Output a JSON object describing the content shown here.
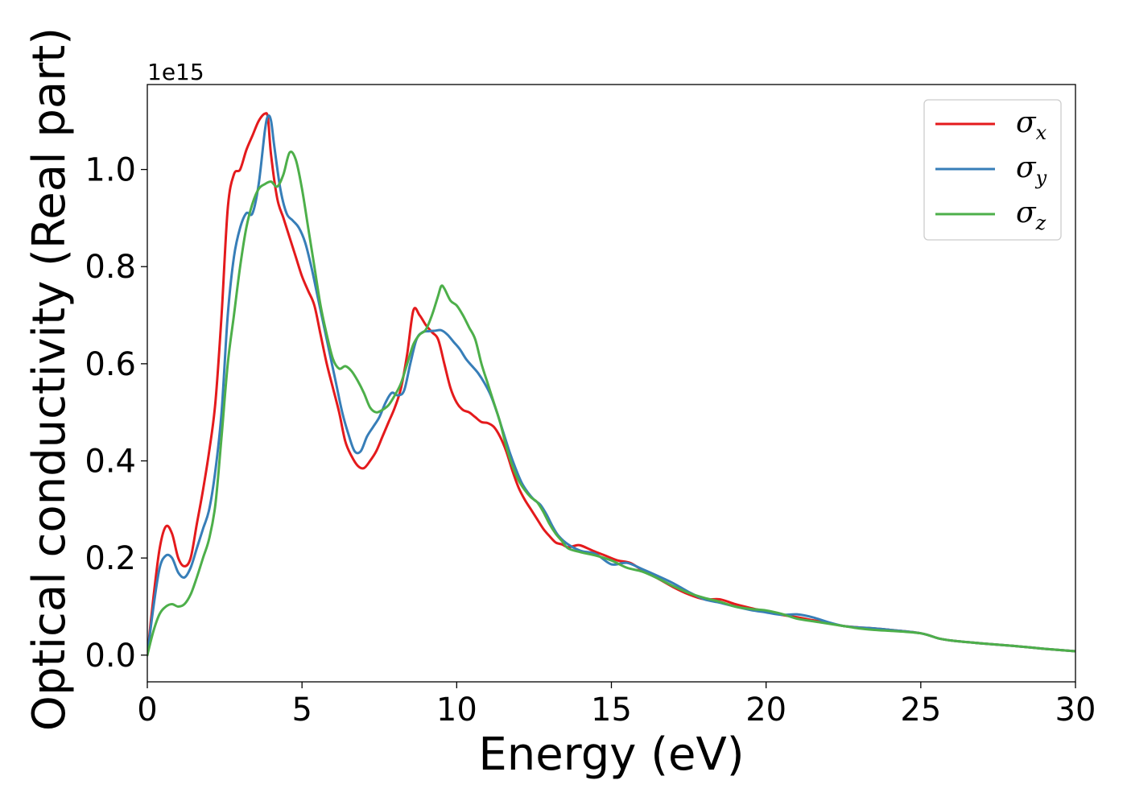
{
  "chart_data": {
    "type": "line",
    "xlabel": "Energy (eV)",
    "ylabel": "Optical conductivity (Real part)",
    "y_offset_label": "1e15",
    "xlim": [
      0,
      30
    ],
    "ylim": [
      -0.055,
      1.175
    ],
    "xticks": [
      0,
      5,
      10,
      15,
      20,
      25,
      30
    ],
    "yticks": [
      0.0,
      0.2,
      0.4,
      0.6,
      0.8,
      1.0
    ],
    "grid": false,
    "legend_position": "top-right",
    "series": [
      {
        "name": "σ",
        "subscript": "x",
        "color": "#e41a1c",
        "points": [
          [
            0,
            0.0
          ],
          [
            0.2,
            0.12
          ],
          [
            0.4,
            0.22
          ],
          [
            0.6,
            0.265
          ],
          [
            0.8,
            0.25
          ],
          [
            1.0,
            0.2
          ],
          [
            1.2,
            0.183
          ],
          [
            1.4,
            0.2
          ],
          [
            1.6,
            0.27
          ],
          [
            1.8,
            0.34
          ],
          [
            2.0,
            0.42
          ],
          [
            2.2,
            0.52
          ],
          [
            2.4,
            0.7
          ],
          [
            2.6,
            0.92
          ],
          [
            2.8,
            0.99
          ],
          [
            3.0,
            1.0
          ],
          [
            3.2,
            1.04
          ],
          [
            3.4,
            1.07
          ],
          [
            3.6,
            1.1
          ],
          [
            3.8,
            1.115
          ],
          [
            3.9,
            1.105
          ],
          [
            4.0,
            1.03
          ],
          [
            4.2,
            0.94
          ],
          [
            4.4,
            0.9
          ],
          [
            4.6,
            0.86
          ],
          [
            4.8,
            0.82
          ],
          [
            5.0,
            0.78
          ],
          [
            5.2,
            0.75
          ],
          [
            5.4,
            0.72
          ],
          [
            5.6,
            0.66
          ],
          [
            5.8,
            0.6
          ],
          [
            6.0,
            0.55
          ],
          [
            6.2,
            0.5
          ],
          [
            6.4,
            0.44
          ],
          [
            6.6,
            0.41
          ],
          [
            6.8,
            0.39
          ],
          [
            7.0,
            0.385
          ],
          [
            7.2,
            0.4
          ],
          [
            7.4,
            0.42
          ],
          [
            7.6,
            0.45
          ],
          [
            7.8,
            0.48
          ],
          [
            8.0,
            0.51
          ],
          [
            8.2,
            0.55
          ],
          [
            8.4,
            0.62
          ],
          [
            8.6,
            0.71
          ],
          [
            8.8,
            0.7
          ],
          [
            9.0,
            0.68
          ],
          [
            9.2,
            0.665
          ],
          [
            9.4,
            0.65
          ],
          [
            9.6,
            0.6
          ],
          [
            9.8,
            0.55
          ],
          [
            10.0,
            0.52
          ],
          [
            10.2,
            0.505
          ],
          [
            10.4,
            0.5
          ],
          [
            10.6,
            0.49
          ],
          [
            10.8,
            0.48
          ],
          [
            11.0,
            0.478
          ],
          [
            11.2,
            0.47
          ],
          [
            11.4,
            0.45
          ],
          [
            11.6,
            0.42
          ],
          [
            11.8,
            0.38
          ],
          [
            12.0,
            0.345
          ],
          [
            12.2,
            0.32
          ],
          [
            12.4,
            0.3
          ],
          [
            12.6,
            0.28
          ],
          [
            12.8,
            0.26
          ],
          [
            13.0,
            0.245
          ],
          [
            13.2,
            0.232
          ],
          [
            13.4,
            0.228
          ],
          [
            13.6,
            0.222
          ],
          [
            13.8,
            0.225
          ],
          [
            14.0,
            0.226
          ],
          [
            14.4,
            0.215
          ],
          [
            14.8,
            0.205
          ],
          [
            15.2,
            0.195
          ],
          [
            15.6,
            0.19
          ],
          [
            16.0,
            0.175
          ],
          [
            16.5,
            0.158
          ],
          [
            17.0,
            0.14
          ],
          [
            17.5,
            0.125
          ],
          [
            18.0,
            0.115
          ],
          [
            18.5,
            0.115
          ],
          [
            19.0,
            0.105
          ],
          [
            19.5,
            0.097
          ],
          [
            20.0,
            0.09
          ],
          [
            20.5,
            0.083
          ],
          [
            21.0,
            0.078
          ],
          [
            21.5,
            0.072
          ],
          [
            22.0,
            0.066
          ],
          [
            22.5,
            0.06
          ],
          [
            23.0,
            0.057
          ],
          [
            23.5,
            0.055
          ],
          [
            24.0,
            0.052
          ],
          [
            24.5,
            0.049
          ],
          [
            25.0,
            0.045
          ],
          [
            25.3,
            0.04
          ],
          [
            25.6,
            0.034
          ],
          [
            26.0,
            0.03
          ],
          [
            27.0,
            0.024
          ],
          [
            28.0,
            0.019
          ],
          [
            29.0,
            0.013
          ],
          [
            30.0,
            0.008
          ]
        ]
      },
      {
        "name": "σ",
        "subscript": "y",
        "color": "#377eb8",
        "points": [
          [
            0,
            0.0
          ],
          [
            0.2,
            0.1
          ],
          [
            0.4,
            0.18
          ],
          [
            0.6,
            0.205
          ],
          [
            0.8,
            0.2
          ],
          [
            1.0,
            0.17
          ],
          [
            1.2,
            0.16
          ],
          [
            1.4,
            0.18
          ],
          [
            1.6,
            0.22
          ],
          [
            1.8,
            0.26
          ],
          [
            2.0,
            0.3
          ],
          [
            2.2,
            0.38
          ],
          [
            2.4,
            0.5
          ],
          [
            2.6,
            0.7
          ],
          [
            2.8,
            0.82
          ],
          [
            3.0,
            0.88
          ],
          [
            3.2,
            0.91
          ],
          [
            3.4,
            0.91
          ],
          [
            3.6,
            0.97
          ],
          [
            3.8,
            1.08
          ],
          [
            3.9,
            1.11
          ],
          [
            4.0,
            1.1
          ],
          [
            4.1,
            1.05
          ],
          [
            4.3,
            0.96
          ],
          [
            4.5,
            0.91
          ],
          [
            4.7,
            0.895
          ],
          [
            4.9,
            0.88
          ],
          [
            5.1,
            0.85
          ],
          [
            5.3,
            0.8
          ],
          [
            5.5,
            0.74
          ],
          [
            5.7,
            0.68
          ],
          [
            5.9,
            0.62
          ],
          [
            6.1,
            0.56
          ],
          [
            6.3,
            0.5
          ],
          [
            6.5,
            0.455
          ],
          [
            6.7,
            0.42
          ],
          [
            6.9,
            0.42
          ],
          [
            7.1,
            0.45
          ],
          [
            7.3,
            0.47
          ],
          [
            7.5,
            0.49
          ],
          [
            7.7,
            0.52
          ],
          [
            7.9,
            0.54
          ],
          [
            8.1,
            0.535
          ],
          [
            8.3,
            0.545
          ],
          [
            8.5,
            0.6
          ],
          [
            8.7,
            0.65
          ],
          [
            8.9,
            0.665
          ],
          [
            9.1,
            0.667
          ],
          [
            9.3,
            0.668
          ],
          [
            9.5,
            0.669
          ],
          [
            9.7,
            0.66
          ],
          [
            9.9,
            0.645
          ],
          [
            10.1,
            0.63
          ],
          [
            10.3,
            0.61
          ],
          [
            10.5,
            0.595
          ],
          [
            10.7,
            0.58
          ],
          [
            10.9,
            0.56
          ],
          [
            11.1,
            0.535
          ],
          [
            11.3,
            0.5
          ],
          [
            11.5,
            0.46
          ],
          [
            11.7,
            0.42
          ],
          [
            11.9,
            0.385
          ],
          [
            12.1,
            0.355
          ],
          [
            12.3,
            0.335
          ],
          [
            12.5,
            0.32
          ],
          [
            12.7,
            0.31
          ],
          [
            12.9,
            0.29
          ],
          [
            13.1,
            0.265
          ],
          [
            13.3,
            0.245
          ],
          [
            13.6,
            0.228
          ],
          [
            14.0,
            0.215
          ],
          [
            14.5,
            0.208
          ],
          [
            15.0,
            0.187
          ],
          [
            15.5,
            0.19
          ],
          [
            16.0,
            0.177
          ],
          [
            16.5,
            0.163
          ],
          [
            17.0,
            0.148
          ],
          [
            17.5,
            0.13
          ],
          [
            18.0,
            0.115
          ],
          [
            18.5,
            0.108
          ],
          [
            19.0,
            0.1
          ],
          [
            19.5,
            0.093
          ],
          [
            20.0,
            0.088
          ],
          [
            20.5,
            0.083
          ],
          [
            21.0,
            0.084
          ],
          [
            21.5,
            0.078
          ],
          [
            22.0,
            0.068
          ],
          [
            22.5,
            0.06
          ],
          [
            23.0,
            0.057
          ],
          [
            23.5,
            0.055
          ],
          [
            24.0,
            0.052
          ],
          [
            24.5,
            0.049
          ],
          [
            25.0,
            0.045
          ],
          [
            25.3,
            0.04
          ],
          [
            25.6,
            0.034
          ],
          [
            26.0,
            0.03
          ],
          [
            27.0,
            0.024
          ],
          [
            28.0,
            0.019
          ],
          [
            29.0,
            0.013
          ],
          [
            30.0,
            0.008
          ]
        ]
      },
      {
        "name": "σ",
        "subscript": "z",
        "color": "#4daf4a",
        "points": [
          [
            0,
            0.0
          ],
          [
            0.2,
            0.05
          ],
          [
            0.4,
            0.085
          ],
          [
            0.6,
            0.1
          ],
          [
            0.8,
            0.105
          ],
          [
            1.0,
            0.1
          ],
          [
            1.2,
            0.105
          ],
          [
            1.4,
            0.125
          ],
          [
            1.6,
            0.16
          ],
          [
            1.8,
            0.2
          ],
          [
            2.0,
            0.24
          ],
          [
            2.2,
            0.31
          ],
          [
            2.4,
            0.45
          ],
          [
            2.6,
            0.6
          ],
          [
            2.8,
            0.7
          ],
          [
            3.0,
            0.8
          ],
          [
            3.2,
            0.88
          ],
          [
            3.4,
            0.93
          ],
          [
            3.6,
            0.96
          ],
          [
            3.8,
            0.97
          ],
          [
            4.0,
            0.975
          ],
          [
            4.2,
            0.965
          ],
          [
            4.4,
            0.99
          ],
          [
            4.6,
            1.035
          ],
          [
            4.8,
            1.02
          ],
          [
            5.0,
            0.96
          ],
          [
            5.2,
            0.88
          ],
          [
            5.4,
            0.8
          ],
          [
            5.6,
            0.72
          ],
          [
            5.8,
            0.66
          ],
          [
            6.0,
            0.61
          ],
          [
            6.2,
            0.59
          ],
          [
            6.4,
            0.595
          ],
          [
            6.6,
            0.585
          ],
          [
            6.8,
            0.565
          ],
          [
            7.0,
            0.54
          ],
          [
            7.2,
            0.51
          ],
          [
            7.4,
            0.5
          ],
          [
            7.6,
            0.505
          ],
          [
            7.8,
            0.515
          ],
          [
            8.0,
            0.535
          ],
          [
            8.2,
            0.56
          ],
          [
            8.4,
            0.6
          ],
          [
            8.6,
            0.64
          ],
          [
            8.8,
            0.66
          ],
          [
            9.0,
            0.67
          ],
          [
            9.2,
            0.7
          ],
          [
            9.4,
            0.74
          ],
          [
            9.5,
            0.76
          ],
          [
            9.6,
            0.755
          ],
          [
            9.8,
            0.73
          ],
          [
            10.0,
            0.72
          ],
          [
            10.2,
            0.7
          ],
          [
            10.4,
            0.675
          ],
          [
            10.6,
            0.65
          ],
          [
            10.8,
            0.6
          ],
          [
            11.0,
            0.56
          ],
          [
            11.2,
            0.52
          ],
          [
            11.4,
            0.48
          ],
          [
            11.6,
            0.43
          ],
          [
            11.8,
            0.39
          ],
          [
            12.0,
            0.36
          ],
          [
            12.2,
            0.34
          ],
          [
            12.4,
            0.325
          ],
          [
            12.6,
            0.315
          ],
          [
            12.8,
            0.295
          ],
          [
            13.0,
            0.27
          ],
          [
            13.2,
            0.25
          ],
          [
            13.4,
            0.235
          ],
          [
            13.6,
            0.22
          ],
          [
            14.0,
            0.212
          ],
          [
            14.5,
            0.205
          ],
          [
            15.0,
            0.195
          ],
          [
            15.5,
            0.18
          ],
          [
            16.0,
            0.172
          ],
          [
            16.5,
            0.158
          ],
          [
            17.0,
            0.142
          ],
          [
            17.5,
            0.128
          ],
          [
            18.0,
            0.118
          ],
          [
            18.5,
            0.11
          ],
          [
            19.0,
            0.1
          ],
          [
            19.5,
            0.095
          ],
          [
            20.0,
            0.092
          ],
          [
            20.5,
            0.085
          ],
          [
            21.0,
            0.075
          ],
          [
            21.5,
            0.07
          ],
          [
            22.0,
            0.065
          ],
          [
            22.5,
            0.06
          ],
          [
            23.0,
            0.055
          ],
          [
            23.5,
            0.052
          ],
          [
            24.0,
            0.05
          ],
          [
            24.5,
            0.048
          ],
          [
            25.0,
            0.045
          ],
          [
            25.3,
            0.04
          ],
          [
            25.6,
            0.034
          ],
          [
            26.0,
            0.03
          ],
          [
            27.0,
            0.024
          ],
          [
            28.0,
            0.019
          ],
          [
            29.0,
            0.013
          ],
          [
            30.0,
            0.008
          ]
        ]
      }
    ]
  }
}
